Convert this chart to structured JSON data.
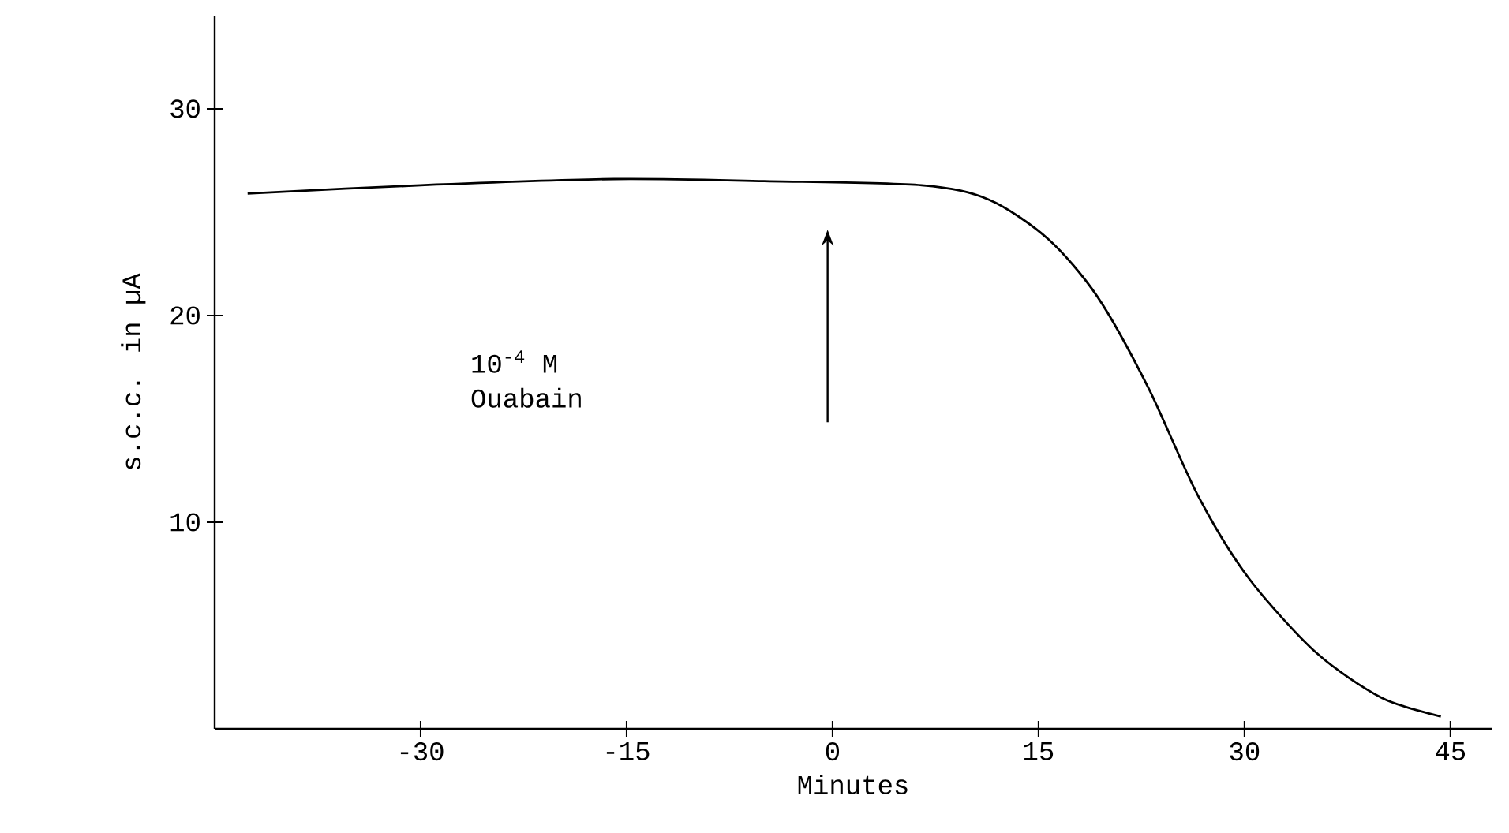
{
  "chart_data": {
    "type": "line",
    "xlabel": "Minutes",
    "ylabel": "s.c.c. in µA",
    "x": [
      -42.6,
      -30,
      -15.9,
      -5,
      6.5,
      11.4,
      15.7,
      19.3,
      23,
      26.6,
      30.3,
      35.2,
      40,
      44.3
    ],
    "series": [
      {
        "color": "#000000",
        "values": [
          25.9,
          26.3,
          26.6,
          26.5,
          26.3,
          25.6,
          23.7,
          20.9,
          16.5,
          11.3,
          7.3,
          3.7,
          1.5,
          0.6
        ]
      }
    ],
    "xlim": [
      -45,
      48
    ],
    "ylim": [
      0,
      34.5
    ],
    "xticks": [
      -30,
      -15,
      0,
      15,
      30,
      45
    ],
    "yticks": [
      10,
      20,
      30
    ],
    "annotations": [
      "10$^{-4}$ M\nOuabain"
    ],
    "grid": false,
    "marker": "none",
    "line_style": "solid"
  }
}
